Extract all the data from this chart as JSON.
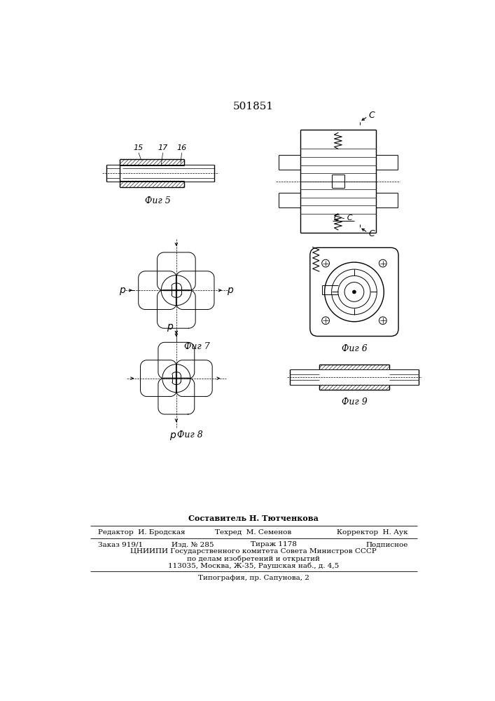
{
  "patent_number": "501851",
  "background_color": "#ffffff",
  "line_color": "#000000",
  "fig_labels": {
    "fig5": "Фиг 5",
    "fig6": "Фиг 6",
    "fig7": "Фиг 7",
    "fig8": "Фиг 8",
    "fig9": "Фиг 9"
  },
  "footer": {
    "sostavitel": "Составитель Н. Тютченкова",
    "redaktor": "Редактор  И. Бродская",
    "tehred": "Техред  М. Семенов",
    "korrektor": "Корректор  Н. Аук",
    "zakaz": "Заказ 919/1",
    "izd": "Изд. № 285",
    "tirazh": "Тираж 1178",
    "podpis": "Подписное",
    "cniip1": "ЦНИИПИ Государственного комитета Совета Министров СССР",
    "cniip2": "по делам изобретений и открытий",
    "cniip3": "113035, Москва, Ж-35, Раушская наб., д. 4,5",
    "tipografia": "Типография, пр. Сапунова, 2"
  }
}
